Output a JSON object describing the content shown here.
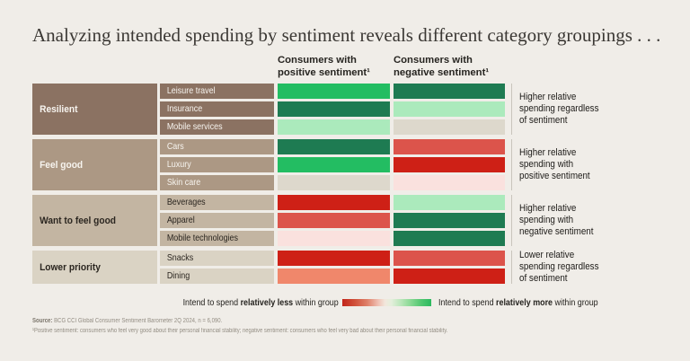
{
  "title": "Analyzing intended spending by sentiment reveals different category groupings . . .",
  "column_headers": {
    "positive": "Consumers with\npositive sentiment¹",
    "negative": "Consumers with\nnegative sentiment¹"
  },
  "palette": {
    "background": "#F0EDE8",
    "dark_green": "#1E7B52",
    "bright_green": "#23BD62",
    "light_green": "#ABEABC",
    "neutral": "#DDD8CC",
    "pale_pink": "#FAE1DE",
    "bright_red": "#CE2016",
    "salmon": "#DC544B",
    "light_coral": "#F0876B",
    "group_browns": [
      "#8B7262",
      "#AC9884",
      "#C3B5A2",
      "#DAD3C4"
    ],
    "label_text_light": "#F7F4EF",
    "label_text_dark": "#2B2620",
    "divider_line": "#C9C5BC"
  },
  "chart_data": {
    "type": "heatmap",
    "title": "Analyzing intended spending by sentiment reveals different category groupings . . .",
    "columns": [
      "Consumers with positive sentiment¹",
      "Consumers with negative sentiment¹"
    ],
    "legend": "cell color encodes intent to spend within group: bright_red = much less, salmon = less, light_coral = somewhat less, pale_pink = slightly less, neutral = neutral, light_green = slightly more, bright_green = more, dark_green = much more",
    "groups": [
      {
        "label": "Resilient",
        "annotation": "Higher relative\nspending regardless\nof sentiment",
        "rows": [
          {
            "category": "Leisure travel",
            "positive": "bright_green",
            "negative": "dark_green"
          },
          {
            "category": "Insurance",
            "positive": "dark_green",
            "negative": "light_green"
          },
          {
            "category": "Mobile services",
            "positive": "light_green",
            "negative": "neutral"
          }
        ]
      },
      {
        "label": "Feel good",
        "annotation": "Higher relative\nspending with\npositive sentiment",
        "rows": [
          {
            "category": "Cars",
            "positive": "dark_green",
            "negative": "salmon"
          },
          {
            "category": "Luxury",
            "positive": "bright_green",
            "negative": "bright_red"
          },
          {
            "category": "Skin care",
            "positive": "neutral",
            "negative": "pale_pink"
          }
        ]
      },
      {
        "label": "Want to feel good",
        "annotation": "Higher relative\nspending with\nnegative sentiment",
        "rows": [
          {
            "category": "Beverages",
            "positive": "bright_red",
            "negative": "light_green"
          },
          {
            "category": "Apparel",
            "positive": "salmon",
            "negative": "dark_green"
          },
          {
            "category": "Mobile technologies",
            "positive": "pale_pink",
            "negative": "dark_green"
          }
        ]
      },
      {
        "label": "Lower priority",
        "annotation": "Lower relative\nspending regardless\nof sentiment",
        "rows": [
          {
            "category": "Snacks",
            "positive": "bright_red",
            "negative": "salmon"
          },
          {
            "category": "Dining",
            "positive": "light_coral",
            "negative": "bright_red"
          }
        ]
      }
    ]
  },
  "legend": {
    "less_prefix": "Intend to spend ",
    "less_bold": "relatively less",
    "less_suffix": " within group",
    "more_prefix": "Intend to spend ",
    "more_bold": "relatively more",
    "more_suffix": " within group"
  },
  "source": {
    "label": "Source:",
    "text": " BCG CCI Global Consumer Sentiment Barometer 2Q 2024, n = 6,090.",
    "footnote": "¹Positive sentiment: consumers who feel very good about their personal financial stability; negative sentiment: consumers who feel very bad about their personal financial stability."
  }
}
